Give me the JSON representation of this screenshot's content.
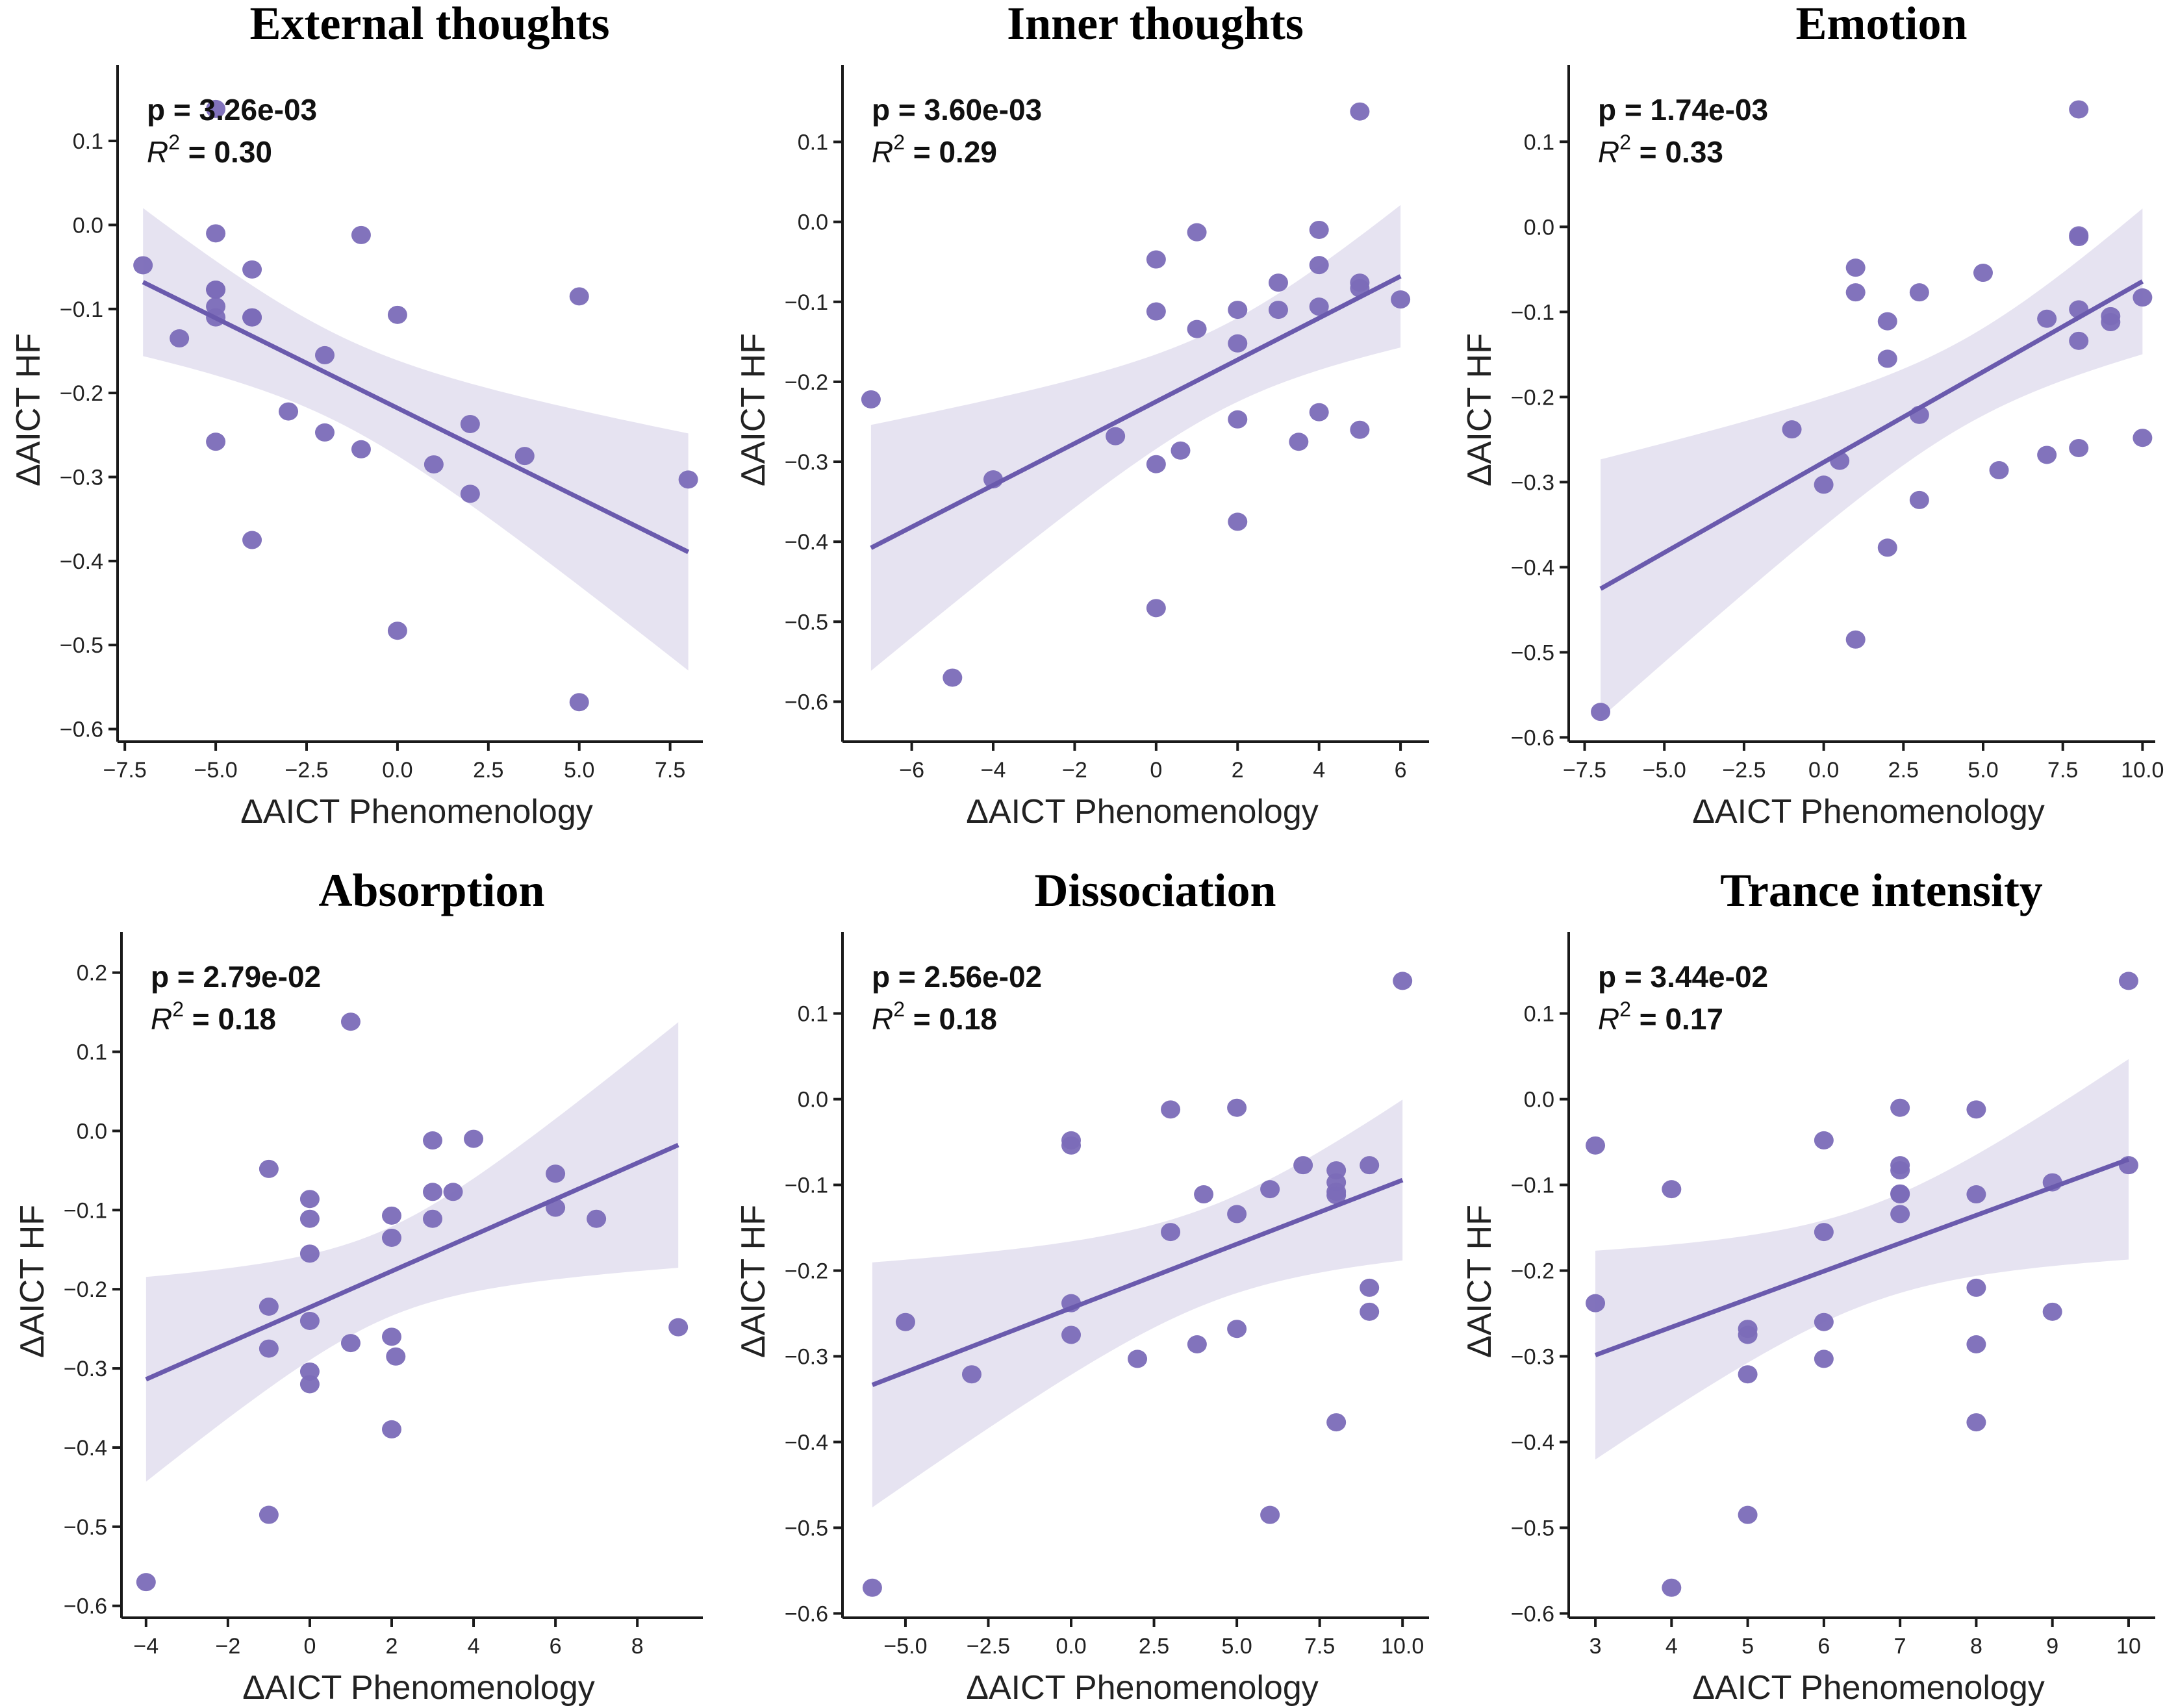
{
  "figure": {
    "shared_ylabel": "ΔAICT HF",
    "shared_xlabel": "ΔAICT Phenomenology",
    "colors": {
      "point": "#7b6bb8",
      "line": "#6a5aad",
      "band": "#e3e0f0"
    }
  },
  "chart_data": [
    {
      "type": "scatter",
      "title": "External thoughts",
      "xlabel": "ΔAICT Phenomenology",
      "ylabel": "ΔAICT HF",
      "annotation": {
        "p": "p = 3.26e-03",
        "r2_prefix": "R",
        "r2_sup": "2",
        "r2_value": " = 0.30"
      },
      "xlim": [
        -7.7,
        8.4
      ],
      "ylim": [
        -0.615,
        0.175
      ],
      "xticks": [
        -7.5,
        -5.0,
        -2.5,
        0.0,
        2.5,
        5.0,
        7.5
      ],
      "xtick_labels": [
        "−7.5",
        "−5.0",
        "−2.5",
        "0.0",
        "2.5",
        "5.0",
        "7.5"
      ],
      "yticks": [
        0.1,
        0.0,
        -0.1,
        -0.2,
        -0.3,
        -0.4,
        -0.5,
        -0.6
      ],
      "ytick_labels": [
        "0.1",
        "0.0",
        "−0.1",
        "−0.2",
        "−0.3",
        "−0.4",
        "−0.5",
        "−0.6"
      ],
      "regression": true,
      "grid": false,
      "points": [
        [
          -7,
          -0.048
        ],
        [
          -6,
          -0.135
        ],
        [
          -5,
          0.138
        ],
        [
          -5,
          -0.01
        ],
        [
          -5,
          -0.077
        ],
        [
          -5,
          -0.077
        ],
        [
          -5,
          -0.097
        ],
        [
          -5,
          -0.11
        ],
        [
          -5,
          -0.258
        ],
        [
          -4,
          -0.053
        ],
        [
          -4,
          -0.11
        ],
        [
          -4,
          -0.11
        ],
        [
          -4,
          -0.375
        ],
        [
          -3,
          -0.222
        ],
        [
          -2,
          -0.155
        ],
        [
          -2,
          -0.247
        ],
        [
          -1,
          -0.012
        ],
        [
          -1,
          -0.267
        ],
        [
          0,
          -0.107
        ],
        [
          0,
          -0.483
        ],
        [
          1,
          -0.285
        ],
        [
          2,
          -0.237
        ],
        [
          2,
          -0.32
        ],
        [
          3.5,
          -0.275
        ],
        [
          5,
          -0.085
        ],
        [
          5,
          -0.568
        ],
        [
          8,
          -0.303
        ]
      ]
    },
    {
      "type": "scatter",
      "title": "Inner thoughts",
      "xlabel": "ΔAICT Phenomenology",
      "ylabel": "ΔAICT HF",
      "annotation": {
        "p": "p = 3.60e-03",
        "r2_prefix": "R",
        "r2_sup": "2",
        "r2_value": " = 0.29"
      },
      "xlim": [
        -7.7,
        6.7
      ],
      "ylim": [
        -0.65,
        0.18
      ],
      "xticks": [
        -6,
        -4,
        -2,
        0,
        2,
        4,
        6
      ],
      "xtick_labels": [
        "−6",
        "−4",
        "−2",
        "0",
        "2",
        "4",
        "6"
      ],
      "yticks": [
        0.1,
        0.0,
        -0.1,
        -0.2,
        -0.3,
        -0.4,
        -0.5,
        -0.6
      ],
      "ytick_labels": [
        "0.1",
        "0.0",
        "−0.1",
        "−0.2",
        "−0.3",
        "−0.4",
        "−0.5",
        "−0.6"
      ],
      "regression": true,
      "grid": false,
      "points": [
        [
          -7,
          -0.222
        ],
        [
          -5,
          -0.57
        ],
        [
          -4,
          -0.322
        ],
        [
          -1,
          -0.268
        ],
        [
          0,
          -0.047
        ],
        [
          0,
          -0.112
        ],
        [
          0,
          -0.303
        ],
        [
          0,
          -0.483
        ],
        [
          0.6,
          -0.286
        ],
        [
          1,
          -0.013
        ],
        [
          1,
          -0.134
        ],
        [
          2,
          -0.11
        ],
        [
          2,
          -0.152
        ],
        [
          2,
          -0.247
        ],
        [
          2,
          -0.375
        ],
        [
          3,
          -0.076
        ],
        [
          3,
          -0.11
        ],
        [
          3.5,
          -0.275
        ],
        [
          4,
          -0.01
        ],
        [
          4,
          -0.054
        ],
        [
          4,
          -0.106
        ],
        [
          4,
          -0.238
        ],
        [
          5,
          0.138
        ],
        [
          5,
          -0.076
        ],
        [
          5,
          -0.083
        ],
        [
          5,
          -0.26
        ],
        [
          6,
          -0.097
        ]
      ]
    },
    {
      "type": "scatter",
      "title": "Emotion",
      "xlabel": "ΔAICT Phenomenology",
      "ylabel": "ΔAICT HF",
      "annotation": {
        "p": "p = 1.74e-03",
        "r2_prefix": "R",
        "r2_sup": "2",
        "r2_value": " = 0.33"
      },
      "xlim": [
        -8.0,
        10.4
      ],
      "ylim": [
        -0.605,
        0.175
      ],
      "xticks": [
        -7.5,
        -5.0,
        -2.5,
        0.0,
        2.5,
        5.0,
        7.5,
        10.0
      ],
      "xtick_labels": [
        "−7.5",
        "−5.0",
        "−2.5",
        "0.0",
        "2.5",
        "5.0",
        "7.5",
        "10.0"
      ],
      "yticks": [
        0.1,
        0.0,
        -0.1,
        -0.2,
        -0.3,
        -0.4,
        -0.5,
        -0.6
      ],
      "ytick_labels": [
        "0.1",
        "0.0",
        "−0.1",
        "−0.2",
        "−0.3",
        "−0.4",
        "−0.5",
        "−0.6"
      ],
      "regression": true,
      "grid": false,
      "points": [
        [
          -7,
          -0.57
        ],
        [
          -1,
          -0.238
        ],
        [
          0,
          -0.303
        ],
        [
          0.5,
          -0.275
        ],
        [
          1,
          -0.048
        ],
        [
          1,
          -0.077
        ],
        [
          1,
          -0.485
        ],
        [
          2,
          -0.111
        ],
        [
          2,
          -0.155
        ],
        [
          2,
          -0.377
        ],
        [
          3,
          -0.077
        ],
        [
          3,
          -0.221
        ],
        [
          3,
          -0.321
        ],
        [
          5,
          -0.054
        ],
        [
          5.5,
          -0.286
        ],
        [
          7,
          -0.108
        ],
        [
          7,
          -0.268
        ],
        [
          8,
          0.138
        ],
        [
          8,
          -0.01
        ],
        [
          8,
          -0.012
        ],
        [
          8,
          -0.097
        ],
        [
          8,
          -0.134
        ],
        [
          8,
          -0.26
        ],
        [
          9,
          -0.105
        ],
        [
          9,
          -0.112
        ],
        [
          10,
          -0.083
        ],
        [
          10,
          -0.248
        ]
      ]
    },
    {
      "type": "scatter",
      "title": "Absorption",
      "xlabel": "ΔAICT Phenomenology",
      "ylabel": "ΔAICT HF",
      "annotation": {
        "p": "p = 2.79e-02",
        "r2_prefix": "R",
        "r2_sup": "2",
        "r2_value": " = 0.18"
      },
      "xlim": [
        -4.6,
        9.6
      ],
      "ylim": [
        -0.615,
        0.235
      ],
      "xticks": [
        -4,
        -2,
        0,
        2,
        4,
        6,
        8
      ],
      "xtick_labels": [
        "−4",
        "−2",
        "0",
        "2",
        "4",
        "6",
        "8"
      ],
      "yticks": [
        0.2,
        0.1,
        0.0,
        -0.1,
        -0.2,
        -0.3,
        -0.4,
        -0.5,
        -0.6
      ],
      "ytick_labels": [
        "0.2",
        "0.1",
        "0.0",
        "−0.1",
        "−0.2",
        "−0.3",
        "−0.4",
        "−0.5",
        "−0.6"
      ],
      "regression": true,
      "grid": false,
      "points": [
        [
          -4,
          -0.57
        ],
        [
          -1,
          -0.048
        ],
        [
          -1,
          -0.222
        ],
        [
          -1,
          -0.275
        ],
        [
          -1,
          -0.485
        ],
        [
          0,
          -0.086
        ],
        [
          0,
          -0.111
        ],
        [
          0,
          -0.155
        ],
        [
          0,
          -0.24
        ],
        [
          0,
          -0.304
        ],
        [
          0,
          -0.32
        ],
        [
          1,
          0.138
        ],
        [
          1,
          -0.268
        ],
        [
          2,
          -0.107
        ],
        [
          2,
          -0.135
        ],
        [
          2,
          -0.26
        ],
        [
          2,
          -0.377
        ],
        [
          2.1,
          -0.285
        ],
        [
          3,
          -0.012
        ],
        [
          3,
          -0.077
        ],
        [
          3,
          -0.111
        ],
        [
          3.5,
          -0.077
        ],
        [
          4,
          -0.01
        ],
        [
          6,
          -0.054
        ],
        [
          6,
          -0.097
        ],
        [
          7,
          -0.111
        ],
        [
          9,
          -0.248
        ]
      ]
    },
    {
      "type": "scatter",
      "title": "Dissociation",
      "xlabel": "ΔAICT Phenomenology",
      "ylabel": "ΔAICT HF",
      "annotation": {
        "p": "p = 2.56e-02",
        "r2_prefix": "R",
        "r2_sup": "2",
        "r2_value": " = 0.18"
      },
      "xlim": [
        -6.9,
        10.8
      ],
      "ylim": [
        -0.605,
        0.18
      ],
      "xticks": [
        -5.0,
        -2.5,
        0.0,
        2.5,
        5.0,
        7.5,
        10.0
      ],
      "xtick_labels": [
        "−5.0",
        "−2.5",
        "0.0",
        "2.5",
        "5.0",
        "7.5",
        "10.0"
      ],
      "yticks": [
        0.1,
        0.0,
        -0.1,
        -0.2,
        -0.3,
        -0.4,
        -0.5,
        -0.6
      ],
      "ytick_labels": [
        "0.1",
        "0.0",
        "−0.1",
        "−0.2",
        "−0.3",
        "−0.4",
        "−0.5",
        "−0.6"
      ],
      "regression": true,
      "grid": false,
      "points": [
        [
          -6,
          -0.57
        ],
        [
          -5,
          -0.26
        ],
        [
          -3,
          -0.321
        ],
        [
          0,
          -0.048
        ],
        [
          0,
          -0.054
        ],
        [
          0,
          -0.238
        ],
        [
          0,
          -0.275
        ],
        [
          2,
          -0.303
        ],
        [
          3,
          -0.012
        ],
        [
          3,
          -0.155
        ],
        [
          3.8,
          -0.286
        ],
        [
          4,
          -0.111
        ],
        [
          5,
          -0.01
        ],
        [
          5,
          -0.134
        ],
        [
          5,
          -0.268
        ],
        [
          6,
          -0.105
        ],
        [
          6,
          -0.485
        ],
        [
          7,
          -0.077
        ],
        [
          8,
          -0.083
        ],
        [
          8,
          -0.097
        ],
        [
          8,
          -0.108
        ],
        [
          8,
          -0.112
        ],
        [
          8,
          -0.377
        ],
        [
          9,
          -0.077
        ],
        [
          9,
          -0.22
        ],
        [
          9,
          -0.248
        ],
        [
          10,
          0.138
        ]
      ]
    },
    {
      "type": "scatter",
      "title": "Trance intensity",
      "xlabel": "ΔAICT Phenomenology",
      "ylabel": "ΔAICT HF",
      "annotation": {
        "p": "p = 3.44e-02",
        "r2_prefix": "R",
        "r2_sup": "2",
        "r2_value": " = 0.17"
      },
      "xlim": [
        2.65,
        10.35
      ],
      "ylim": [
        -0.605,
        0.18
      ],
      "xticks": [
        3,
        4,
        5,
        6,
        7,
        8,
        9,
        10
      ],
      "xtick_labels": [
        "3",
        "4",
        "5",
        "6",
        "7",
        "8",
        "9",
        "10"
      ],
      "yticks": [
        0.1,
        0.0,
        -0.1,
        -0.2,
        -0.3,
        -0.4,
        -0.5,
        -0.6
      ],
      "ytick_labels": [
        "0.1",
        "0.0",
        "−0.1",
        "−0.2",
        "−0.3",
        "−0.4",
        "−0.5",
        "−0.6"
      ],
      "regression": true,
      "grid": false,
      "points": [
        [
          3,
          -0.054
        ],
        [
          3,
          -0.238
        ],
        [
          4,
          -0.105
        ],
        [
          4,
          -0.57
        ],
        [
          5,
          -0.268
        ],
        [
          5,
          -0.275
        ],
        [
          5,
          -0.321
        ],
        [
          5,
          -0.485
        ],
        [
          6,
          -0.048
        ],
        [
          6,
          -0.155
        ],
        [
          6,
          -0.26
        ],
        [
          6,
          -0.303
        ],
        [
          7,
          -0.01
        ],
        [
          7,
          -0.077
        ],
        [
          7,
          -0.083
        ],
        [
          7,
          -0.11
        ],
        [
          7,
          -0.111
        ],
        [
          7,
          -0.134
        ],
        [
          8,
          -0.012
        ],
        [
          8,
          -0.111
        ],
        [
          8,
          -0.22
        ],
        [
          8,
          -0.286
        ],
        [
          8,
          -0.377
        ],
        [
          9,
          -0.097
        ],
        [
          9,
          -0.248
        ],
        [
          10,
          0.138
        ],
        [
          10,
          -0.077
        ]
      ]
    }
  ]
}
